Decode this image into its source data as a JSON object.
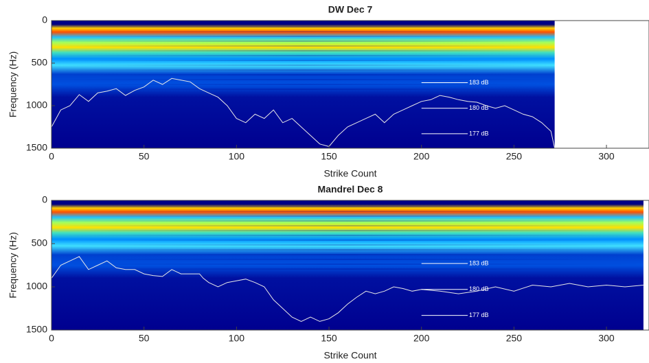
{
  "chart_data": [
    {
      "type": "spectrogram-line",
      "title": "DW Dec 7",
      "x_label": "Strike Count",
      "y_label": "Frequency (Hz)",
      "xlim": [
        0,
        323
      ],
      "xticks": [
        0,
        50,
        100,
        150,
        200,
        250,
        300
      ],
      "ylim": [
        0,
        1500
      ],
      "yticks": [
        0,
        500,
        1000,
        1500
      ],
      "y_direction": "reverse",
      "series": [
        {
          "color": "#e8e8e8",
          "x": [
            0,
            5,
            10,
            15,
            20,
            25,
            30,
            35,
            40,
            45,
            50,
            55,
            60,
            65,
            70,
            75,
            80,
            85,
            90,
            95,
            100,
            105,
            110,
            115,
            120,
            125,
            130,
            135,
            140,
            145,
            150,
            155,
            160,
            165,
            170,
            175,
            180,
            185,
            190,
            195,
            200,
            205,
            210,
            215,
            220,
            225,
            230,
            235,
            240,
            245,
            250,
            255,
            260,
            265,
            270,
            272
          ],
          "values": [
            1250,
            1050,
            1000,
            870,
            950,
            850,
            830,
            800,
            880,
            820,
            780,
            700,
            750,
            680,
            700,
            720,
            800,
            850,
            900,
            1000,
            1150,
            1200,
            1100,
            1150,
            1050,
            1200,
            1150,
            1250,
            1350,
            1450,
            1480,
            1350,
            1250,
            1200,
            1150,
            1100,
            1200,
            1100,
            1050,
            1000,
            950,
            930,
            880,
            900,
            930,
            950,
            960,
            1000,
            1030,
            1000,
            1050,
            1100,
            1130,
            1200,
            1300,
            1500
          ]
        }
      ],
      "annotations": [
        {
          "text": "183 dB",
          "y": 730,
          "x": [
            200,
            225
          ]
        },
        {
          "text": "180 dB",
          "y": 1030,
          "x": [
            200,
            225
          ]
        },
        {
          "text": "177 dB",
          "y": 1330,
          "x": [
            200,
            225
          ]
        }
      ]
    },
    {
      "type": "spectrogram-line",
      "title": "Mandrel Dec 8",
      "x_label": "Strike Count",
      "y_label": "Frequency (Hz)",
      "xlim": [
        0,
        323
      ],
      "xticks": [
        0,
        50,
        100,
        150,
        200,
        250,
        300
      ],
      "ylim": [
        0,
        1500
      ],
      "yticks": [
        0,
        500,
        1000,
        1500
      ],
      "y_direction": "reverse",
      "series": [
        {
          "color": "#e8e8e8",
          "x": [
            0,
            5,
            10,
            15,
            20,
            25,
            30,
            35,
            40,
            45,
            50,
            55,
            60,
            65,
            70,
            75,
            80,
            82,
            85,
            90,
            95,
            100,
            105,
            110,
            115,
            120,
            125,
            130,
            135,
            140,
            145,
            150,
            155,
            160,
            165,
            170,
            175,
            180,
            185,
            190,
            195,
            200,
            210,
            220,
            230,
            240,
            250,
            260,
            270,
            280,
            290,
            300,
            310,
            320
          ],
          "values": [
            900,
            750,
            700,
            650,
            800,
            750,
            700,
            780,
            800,
            800,
            850,
            870,
            880,
            800,
            850,
            850,
            850,
            900,
            950,
            1000,
            950,
            930,
            910,
            950,
            1000,
            1150,
            1250,
            1350,
            1400,
            1350,
            1400,
            1370,
            1300,
            1200,
            1120,
            1050,
            1080,
            1050,
            1000,
            1020,
            1050,
            1030,
            1050,
            1080,
            1050,
            1000,
            1050,
            980,
            1000,
            960,
            1000,
            980,
            1000,
            980
          ]
        }
      ],
      "annotations": [
        {
          "text": "183 dB",
          "y": 730,
          "x": [
            200,
            225
          ]
        },
        {
          "text": "180 dB",
          "y": 1030,
          "x": [
            200,
            225
          ]
        },
        {
          "text": "177 dB",
          "y": 1330,
          "x": [
            200,
            225
          ]
        }
      ]
    }
  ]
}
